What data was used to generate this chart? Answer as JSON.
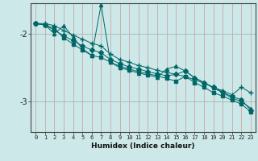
{
  "xlabel": "Humidex (Indice chaleur)",
  "bg_color": "#cce8e8",
  "line_color": "#006666",
  "vgrid_color": "#cc9999",
  "hgrid_color": "#aabbbb",
  "xlim": [
    -0.5,
    23.5
  ],
  "ylim": [
    -3.45,
    -1.55
  ],
  "yticks": [
    -3,
    -2
  ],
  "xticks": [
    0,
    1,
    2,
    3,
    4,
    5,
    6,
    7,
    8,
    9,
    10,
    11,
    12,
    13,
    14,
    15,
    16,
    17,
    18,
    19,
    20,
    21,
    22,
    23
  ],
  "series": [
    {
      "x": [
        0,
        1,
        2,
        3,
        4,
        5,
        6,
        7,
        8,
        9,
        10,
        11,
        12,
        13,
        14,
        15,
        16,
        17,
        18,
        19,
        20,
        21,
        22,
        23
      ],
      "y": [
        -1.85,
        -1.85,
        -1.88,
        -1.95,
        -2.02,
        -2.08,
        -2.14,
        -2.18,
        -2.3,
        -2.38,
        -2.42,
        -2.47,
        -2.5,
        -2.54,
        -2.57,
        -2.6,
        -2.63,
        -2.68,
        -2.73,
        -2.79,
        -2.84,
        -2.9,
        -2.79,
        -2.87
      ],
      "marker": "+"
    },
    {
      "x": [
        0,
        1,
        2,
        3,
        4,
        5,
        6,
        7,
        8,
        9,
        10,
        11,
        12,
        13,
        14,
        15,
        16,
        17,
        18,
        19,
        20,
        21,
        22,
        23
      ],
      "y": [
        -1.85,
        -1.87,
        -1.95,
        -2.03,
        -2.1,
        -2.18,
        -2.24,
        -2.28,
        -2.38,
        -2.44,
        -2.49,
        -2.52,
        -2.56,
        -2.59,
        -2.62,
        -2.6,
        -2.55,
        -2.65,
        -2.72,
        -2.79,
        -2.86,
        -2.93,
        -2.97,
        -3.13
      ],
      "marker": "D"
    },
    {
      "x": [
        0,
        1,
        2,
        3,
        4,
        5,
        6,
        7,
        8,
        9,
        10,
        11,
        12,
        13,
        14,
        15,
        16,
        17,
        18,
        19,
        20,
        21,
        22,
        23
      ],
      "y": [
        -1.85,
        -1.87,
        -2.0,
        -1.88,
        -2.05,
        -2.22,
        -2.32,
        -1.57,
        -2.42,
        -2.5,
        -2.54,
        -2.58,
        -2.61,
        -2.64,
        -2.52,
        -2.48,
        -2.55,
        -2.65,
        -2.72,
        -2.8,
        -2.87,
        -2.95,
        -3.0,
        -3.1
      ],
      "marker": "^"
    },
    {
      "x": [
        0,
        1,
        2,
        3,
        4,
        5,
        6,
        7,
        8,
        9,
        10,
        11,
        12,
        13,
        14,
        15,
        16,
        17,
        18,
        19,
        20,
        21,
        22,
        23
      ],
      "y": [
        -1.85,
        -1.87,
        -1.92,
        -2.06,
        -2.15,
        -2.24,
        -2.32,
        -2.35,
        -2.42,
        -2.48,
        -2.52,
        -2.56,
        -2.59,
        -2.62,
        -2.66,
        -2.7,
        -2.63,
        -2.72,
        -2.79,
        -2.87,
        -2.92,
        -2.98,
        -3.04,
        -3.15
      ],
      "marker": "s"
    }
  ]
}
